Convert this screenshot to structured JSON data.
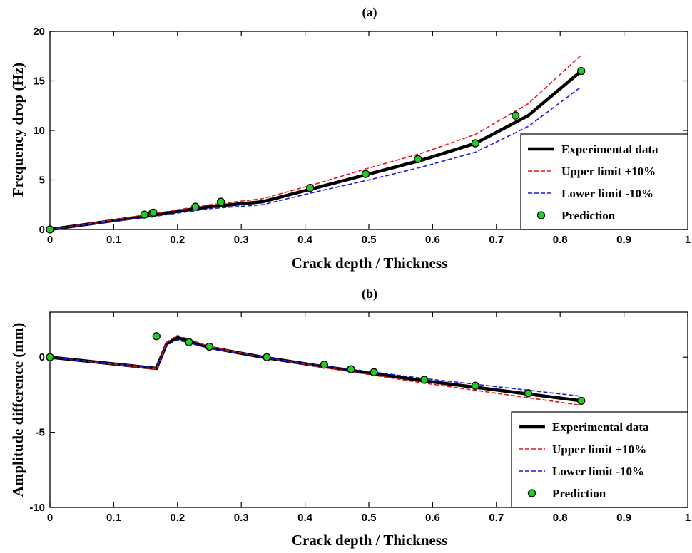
{
  "chart_data": [
    {
      "type": "line",
      "title": "(a)",
      "xlabel": "Crack depth / Thickness",
      "ylabel": "Frequency drop (Hz)",
      "xlim": [
        0,
        1
      ],
      "ylim": [
        0,
        20
      ],
      "xticks": [
        0,
        0.1,
        0.2,
        0.3,
        0.4,
        0.5,
        0.6,
        0.7,
        0.8,
        0.9,
        1
      ],
      "xtick_labels": [
        "0",
        "0.1",
        "0.2",
        "0.3",
        "0.4",
        "0.5",
        "0.6",
        "0.7",
        "0.8",
        "0.9",
        "1"
      ],
      "yticks": [
        0,
        5,
        10,
        15,
        20
      ],
      "ytick_labels": [
        "0",
        "5",
        "10",
        "15",
        "20"
      ],
      "grid": false,
      "legend_position": "bottom-right",
      "series": [
        {
          "name": "Experimental data",
          "style": "solid",
          "color": "#000000",
          "x": [
            0,
            0.167,
            0.25,
            0.333,
            0.417,
            0.5,
            0.583,
            0.667,
            0.75,
            0.833
          ],
          "y": [
            0,
            1.5,
            2.3,
            2.8,
            4.2,
            5.6,
            7.0,
            8.7,
            11.5,
            16.0
          ]
        },
        {
          "name": "Upper limit +10%",
          "style": "dashed",
          "color": "#e8141c",
          "x": [
            0,
            0.167,
            0.25,
            0.333,
            0.417,
            0.5,
            0.583,
            0.667,
            0.75,
            0.833
          ],
          "y": [
            0,
            1.65,
            2.5,
            3.1,
            4.6,
            6.2,
            7.7,
            9.6,
            12.7,
            17.6
          ]
        },
        {
          "name": "Lower limit -10%",
          "style": "dashed",
          "color": "#1a1ae0",
          "x": [
            0,
            0.167,
            0.25,
            0.333,
            0.417,
            0.5,
            0.583,
            0.667,
            0.75,
            0.833
          ],
          "y": [
            0,
            1.35,
            2.1,
            2.5,
            3.8,
            5.0,
            6.3,
            7.8,
            10.4,
            14.4
          ]
        },
        {
          "name": "Prediction",
          "style": "marker",
          "color": "#22cc22",
          "x": [
            0,
            0.148,
            0.16,
            0.162,
            0.228,
            0.268,
            0.408,
            0.495,
            0.577,
            0.667,
            0.73,
            0.833
          ],
          "y": [
            0,
            1.5,
            1.6,
            1.7,
            2.3,
            2.8,
            4.2,
            5.6,
            7.1,
            8.7,
            11.5,
            16.0
          ]
        }
      ]
    },
    {
      "type": "line",
      "title": "(b)",
      "xlabel": "Crack depth / Thickness",
      "ylabel": "Amplitude difference (mm)",
      "xlim": [
        0,
        1
      ],
      "ylim": [
        -10,
        3
      ],
      "xticks": [
        0,
        0.1,
        0.2,
        0.3,
        0.4,
        0.5,
        0.6,
        0.7,
        0.8,
        0.9,
        1
      ],
      "xtick_labels": [
        "0",
        "0.1",
        "0.2",
        "0.3",
        "0.4",
        "0.5",
        "0.6",
        "0.7",
        "0.8",
        "0.9",
        "1"
      ],
      "yticks": [
        -10,
        -5,
        0
      ],
      "ytick_labels": [
        "-10",
        "-5",
        "0"
      ],
      "grid": false,
      "legend_position": "bottom-right",
      "series": [
        {
          "name": "Experimental data",
          "style": "solid",
          "color": "#000000",
          "x": [
            0,
            0.167,
            0.183,
            0.2,
            0.25,
            0.333,
            0.417,
            0.5,
            0.583,
            0.667,
            0.75,
            0.833
          ],
          "y": [
            0,
            -0.75,
            0.9,
            1.3,
            0.65,
            0,
            -0.55,
            -1.05,
            -1.55,
            -2.0,
            -2.45,
            -2.9
          ]
        },
        {
          "name": "Upper limit +10%",
          "style": "dashed",
          "color": "#e8141c",
          "x": [
            0,
            0.167,
            0.183,
            0.2,
            0.25,
            0.333,
            0.417,
            0.5,
            0.583,
            0.667,
            0.75,
            0.833
          ],
          "y": [
            0,
            -0.8,
            1.0,
            1.45,
            0.72,
            0,
            -0.6,
            -1.15,
            -1.7,
            -2.2,
            -2.7,
            -3.2
          ]
        },
        {
          "name": "Lower limit -10%",
          "style": "dashed",
          "color": "#1a1ae0",
          "x": [
            0,
            0.167,
            0.183,
            0.2,
            0.25,
            0.333,
            0.417,
            0.5,
            0.583,
            0.667,
            0.75,
            0.833
          ],
          "y": [
            0,
            -0.7,
            0.8,
            1.15,
            0.58,
            0,
            -0.5,
            -0.95,
            -1.4,
            -1.8,
            -2.2,
            -2.6
          ]
        },
        {
          "name": "Prediction",
          "style": "marker",
          "color": "#22cc22",
          "x": [
            0,
            0.167,
            0.218,
            0.25,
            0.34,
            0.43,
            0.472,
            0.508,
            0.587,
            0.667,
            0.75,
            0.833
          ],
          "y": [
            0,
            1.4,
            1.0,
            0.7,
            0.0,
            -0.5,
            -0.8,
            -1.0,
            -1.5,
            -1.9,
            -2.4,
            -2.9
          ]
        }
      ]
    }
  ]
}
